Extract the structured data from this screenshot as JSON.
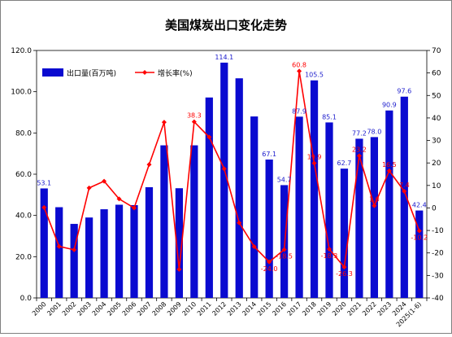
{
  "chart_data": {
    "type": "bar",
    "title": "美国煤炭出口变化走势",
    "categories": [
      "2000",
      "2001",
      "2002",
      "2003",
      "2004",
      "2005",
      "2006",
      "2007",
      "2008",
      "2009",
      "2010",
      "2011",
      "2012",
      "2013",
      "2014",
      "2015",
      "2016",
      "2017",
      "2018",
      "2019",
      "2020",
      "2021",
      "2022",
      "2023",
      "2024",
      "2025(1-6)"
    ],
    "series": [
      {
        "name": "出口量(百万吨)",
        "type": "bar",
        "axis": "left",
        "color": "#0a0ad0",
        "values": [
          53.1,
          44.0,
          35.9,
          39.0,
          43.0,
          45.2,
          45.0,
          53.7,
          74.0,
          53.2,
          74.0,
          97.2,
          114.1,
          106.5,
          88.0,
          67.1,
          54.7,
          87.9,
          105.5,
          85.1,
          62.7,
          77.2,
          78.0,
          90.9,
          97.6,
          42.4
        ],
        "labels": [
          "53.1",
          "",
          "",
          "",
          "",
          "",
          "",
          "",
          "",
          "",
          "",
          "",
          "114.1",
          "",
          "",
          "67.1",
          "54.7",
          "87.9",
          "105.5",
          "85.1",
          "62.7",
          "77.2",
          "78.0",
          "90.9",
          "97.6",
          "42.4"
        ]
      },
      {
        "name": "增长率(%)",
        "type": "line",
        "axis": "right",
        "color": "#ff0000",
        "values": [
          0.2,
          -17.1,
          -18.6,
          8.9,
          11.9,
          4.0,
          0.0,
          19.3,
          38.1,
          -27.3,
          38.3,
          31.5,
          17.4,
          -6.6,
          -17.2,
          -24.0,
          -18.5,
          60.8,
          19.9,
          -18.3,
          -26.3,
          23.2,
          1.0,
          16.5,
          7.4,
          -10.2
        ],
        "labels": [
          "",
          "",
          "",
          "",
          "",
          "",
          "",
          "",
          "",
          "",
          "38.3",
          "",
          "",
          "",
          "",
          "-24.0",
          "-18.5",
          "60.8",
          "19.9",
          "-18.3",
          "-26.3",
          "23.2",
          "1.0",
          "16.5",
          "7.4",
          "-10.2"
        ]
      }
    ],
    "y_left": {
      "ylim": [
        0,
        120
      ],
      "ticks": [
        "0.0",
        "20.0",
        "40.0",
        "60.0",
        "80.0",
        "100.0",
        "120.0"
      ]
    },
    "y_right": {
      "ylim": [
        -40,
        70
      ],
      "ticks": [
        "-40",
        "-30",
        "-20",
        "-10",
        "0",
        "10",
        "20",
        "30",
        "40",
        "50",
        "60",
        "70"
      ]
    },
    "legend_position": "top-left",
    "grid": false
  }
}
